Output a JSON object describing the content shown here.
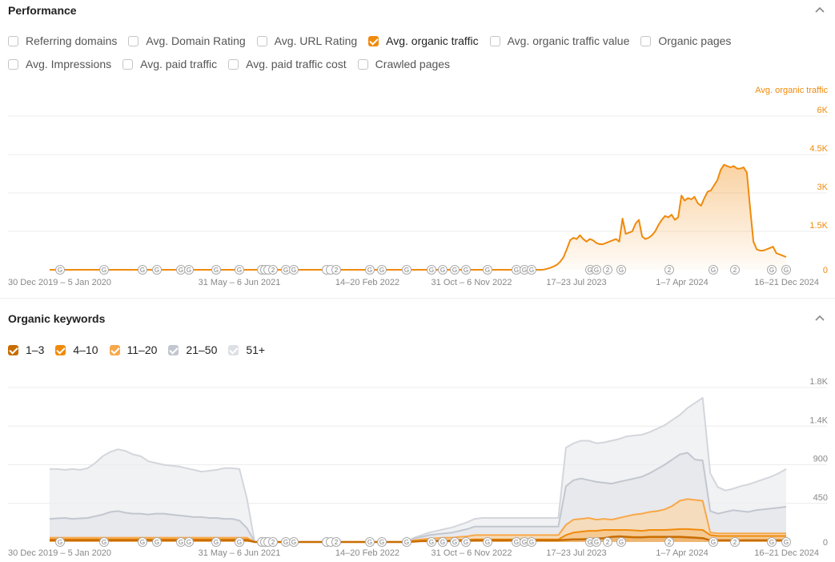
{
  "performance": {
    "title": "Performance",
    "metrics": [
      {
        "label": "Referring domains",
        "checked": false,
        "row": 0
      },
      {
        "label": "Avg. Domain Rating",
        "checked": false,
        "row": 0
      },
      {
        "label": "Avg. URL Rating",
        "checked": false,
        "row": 0
      },
      {
        "label": "Avg. organic traffic",
        "checked": true,
        "row": 0
      },
      {
        "label": "Avg. organic traffic value",
        "checked": false,
        "row": 0
      },
      {
        "label": "Organic pages",
        "checked": false,
        "row": 0
      },
      {
        "label": "Avg. Impressions",
        "checked": false,
        "row": 1
      },
      {
        "label": "Avg. paid traffic",
        "checked": false,
        "row": 1
      },
      {
        "label": "Avg. paid traffic cost",
        "checked": false,
        "row": 1
      },
      {
        "label": "Crawled pages",
        "checked": false,
        "row": 1
      }
    ]
  },
  "organic_keywords": {
    "title": "Organic keywords",
    "legend": [
      {
        "label": "1–3",
        "color": "#c86d00"
      },
      {
        "label": "4–10",
        "color": "#f08a0c"
      },
      {
        "label": "11–20",
        "color": "#f7a84a"
      },
      {
        "label": "21–50",
        "color": "#c2c7cf"
      },
      {
        "label": "51+",
        "color": "#dde0e4"
      }
    ]
  },
  "colors": {
    "accent": "#f08a0c",
    "gray_series": "#c2c7cf",
    "axis_text": "#888888"
  },
  "icons": {
    "collapse": "chevron-up-icon",
    "google_update": "google-update-marker-icon"
  },
  "chart_data": [
    {
      "type": "area",
      "series_name": "Avg. organic traffic",
      "x_labels": [
        "30 Dec 2019 – 5 Jan 2020",
        "31 May – 6 Jun 2021",
        "14–20 Feb 2022",
        "31 Oct – 6 Nov 2022",
        "17–23 Jul 2023",
        "1–7 Apr 2024",
        "16–21 Dec 2024"
      ],
      "yticks": [
        "0",
        "1.5K",
        "3K",
        "4.5K",
        "6K"
      ],
      "ylim": [
        0,
        6000
      ],
      "grid": true,
      "series": [
        {
          "name": "Avg. organic traffic",
          "values": [
            0,
            0,
            0,
            0,
            0,
            0,
            0,
            0,
            0,
            0,
            0,
            0,
            0,
            0,
            0,
            0,
            0,
            0,
            0,
            0,
            0,
            0,
            0,
            0,
            0,
            0,
            0,
            0,
            0,
            0,
            0,
            0,
            0,
            0,
            0,
            0,
            0,
            0,
            0,
            0,
            0,
            0,
            0,
            0,
            0,
            0,
            0,
            0,
            0,
            0,
            0,
            0,
            0,
            0,
            0,
            0,
            0,
            0,
            0,
            0,
            0,
            0,
            0,
            0,
            0,
            0,
            0,
            0,
            0,
            0,
            0,
            0,
            0,
            0,
            0,
            0,
            0,
            0,
            0,
            0,
            0,
            0,
            0,
            0,
            0,
            0,
            0,
            0,
            0,
            0,
            0,
            0,
            0,
            0,
            0,
            0,
            0,
            0,
            0,
            0,
            0,
            0,
            0,
            0,
            0,
            0,
            0,
            0,
            0,
            0,
            0,
            0,
            0,
            0,
            0,
            0,
            0,
            0,
            0,
            0,
            0,
            0,
            0,
            0,
            0,
            0,
            0,
            0,
            0,
            0,
            0,
            0,
            0,
            0,
            0,
            0,
            0,
            0,
            0,
            0,
            0,
            0,
            0,
            0,
            0,
            0,
            0,
            0,
            0,
            0,
            0,
            10,
            40,
            80,
            130,
            200,
            320,
            500,
            800,
            1150,
            1250,
            1200,
            1350,
            1200,
            1100,
            1200,
            1150,
            1050,
            1000,
            1000,
            1050,
            1100,
            1150,
            1200,
            1100,
            2000,
            1400,
            1450,
            1500,
            1800,
            1950,
            1300,
            1200,
            1250,
            1350,
            1500,
            1750,
            1950,
            2100,
            2050,
            2150,
            1950,
            2050,
            2900,
            2700,
            2800,
            2750,
            2850,
            2600,
            2500,
            2800,
            3050,
            3100,
            3300,
            3500,
            3900,
            4100,
            4050,
            4000,
            4050,
            3950,
            3950,
            4000,
            3800,
            2400,
            1100,
            800,
            750,
            750,
            800,
            850,
            900,
            650,
            600,
            550,
            500
          ]
        }
      ]
    },
    {
      "type": "area",
      "x_labels": [
        "30 Dec 2019 – 5 Jan 2020",
        "31 May – 6 Jun 2021",
        "14–20 Feb 2022",
        "31 Oct – 6 Nov 2022",
        "17–23 Jul 2023",
        "1–7 Apr 2024",
        "16–21 Dec 2024"
      ],
      "yticks": [
        "450",
        "900",
        "1.4K",
        "1.8K"
      ],
      "ylim": [
        0,
        1800
      ],
      "grid": true,
      "series": [
        {
          "name": "1–3",
          "values": [
            20,
            20,
            20,
            20,
            20,
            20,
            20,
            20,
            20,
            20,
            20,
            20,
            20,
            20,
            20,
            20,
            20,
            20,
            20,
            20,
            20,
            20,
            20,
            20,
            20,
            20,
            20,
            0,
            0,
            0,
            0,
            0,
            0,
            0,
            0,
            0,
            0,
            0,
            0,
            0,
            0,
            0,
            0,
            0,
            0,
            0,
            0,
            0,
            5,
            10,
            10,
            10,
            10,
            10,
            15,
            15,
            20,
            20,
            20,
            20,
            20,
            20,
            20,
            20,
            20,
            20,
            20,
            20,
            25,
            30,
            30,
            35,
            40,
            45,
            60,
            65,
            60,
            55,
            55,
            60,
            60,
            60,
            60,
            60,
            55,
            50,
            45,
            20,
            20,
            20,
            20,
            20,
            20,
            20,
            20,
            20,
            20,
            20
          ]
        },
        {
          "name": "4–10",
          "values": [
            30,
            30,
            30,
            30,
            30,
            30,
            30,
            30,
            30,
            30,
            30,
            30,
            30,
            30,
            30,
            30,
            30,
            30,
            30,
            30,
            30,
            30,
            30,
            30,
            30,
            30,
            30,
            0,
            0,
            0,
            0,
            0,
            0,
            0,
            0,
            0,
            0,
            0,
            0,
            0,
            0,
            0,
            0,
            0,
            0,
            0,
            0,
            0,
            10,
            15,
            20,
            20,
            20,
            20,
            25,
            25,
            30,
            30,
            30,
            30,
            30,
            30,
            30,
            30,
            30,
            30,
            30,
            30,
            80,
            110,
            120,
            130,
            130,
            140,
            140,
            140,
            140,
            135,
            130,
            140,
            140,
            140,
            145,
            150,
            150,
            145,
            140,
            80,
            70,
            70,
            70,
            70,
            70,
            70,
            70,
            70,
            70,
            70
          ]
        },
        {
          "name": "11–20",
          "values": [
            50,
            50,
            50,
            50,
            50,
            50,
            50,
            50,
            50,
            50,
            50,
            50,
            50,
            50,
            50,
            50,
            50,
            50,
            50,
            50,
            50,
            50,
            50,
            50,
            50,
            50,
            50,
            0,
            0,
            0,
            0,
            0,
            0,
            0,
            0,
            0,
            0,
            0,
            0,
            0,
            0,
            0,
            0,
            0,
            0,
            0,
            0,
            0,
            20,
            30,
            40,
            45,
            50,
            50,
            60,
            65,
            80,
            80,
            80,
            80,
            80,
            80,
            80,
            80,
            80,
            80,
            80,
            80,
            200,
            260,
            270,
            280,
            260,
            270,
            260,
            280,
            300,
            320,
            330,
            350,
            360,
            380,
            420,
            480,
            500,
            490,
            480,
            110,
            100,
            100,
            100,
            100,
            100,
            100,
            100,
            100,
            100,
            100
          ]
        },
        {
          "name": "21–50",
          "values": [
            270,
            275,
            280,
            270,
            275,
            280,
            300,
            320,
            350,
            360,
            340,
            330,
            330,
            320,
            330,
            330,
            320,
            310,
            300,
            290,
            290,
            280,
            280,
            270,
            270,
            250,
            160,
            0,
            0,
            0,
            0,
            0,
            0,
            0,
            0,
            0,
            0,
            0,
            0,
            0,
            0,
            0,
            0,
            0,
            0,
            0,
            0,
            0,
            40,
            60,
            80,
            90,
            100,
            110,
            130,
            150,
            180,
            180,
            180,
            180,
            180,
            180,
            180,
            180,
            180,
            180,
            180,
            180,
            650,
            720,
            740,
            720,
            700,
            690,
            680,
            700,
            720,
            740,
            760,
            800,
            850,
            900,
            960,
            1020,
            1040,
            960,
            950,
            360,
            330,
            350,
            370,
            360,
            350,
            370,
            380,
            390,
            400,
            410
          ]
        },
        {
          "name": "51+",
          "values": [
            850,
            850,
            840,
            850,
            840,
            860,
            920,
            1000,
            1050,
            1080,
            1060,
            1020,
            1000,
            940,
            920,
            900,
            890,
            880,
            860,
            840,
            820,
            830,
            840,
            860,
            860,
            850,
            500,
            0,
            0,
            0,
            0,
            0,
            0,
            0,
            0,
            0,
            0,
            0,
            0,
            0,
            0,
            0,
            0,
            0,
            0,
            0,
            0,
            0,
            50,
            80,
            110,
            130,
            150,
            170,
            200,
            230,
            270,
            280,
            280,
            280,
            280,
            280,
            280,
            280,
            280,
            280,
            280,
            280,
            1100,
            1150,
            1180,
            1180,
            1150,
            1160,
            1180,
            1200,
            1230,
            1240,
            1250,
            1280,
            1320,
            1360,
            1420,
            1480,
            1560,
            1620,
            1680,
            800,
            640,
            600,
            620,
            650,
            670,
            700,
            730,
            760,
            800,
            850
          ]
        }
      ]
    }
  ]
}
